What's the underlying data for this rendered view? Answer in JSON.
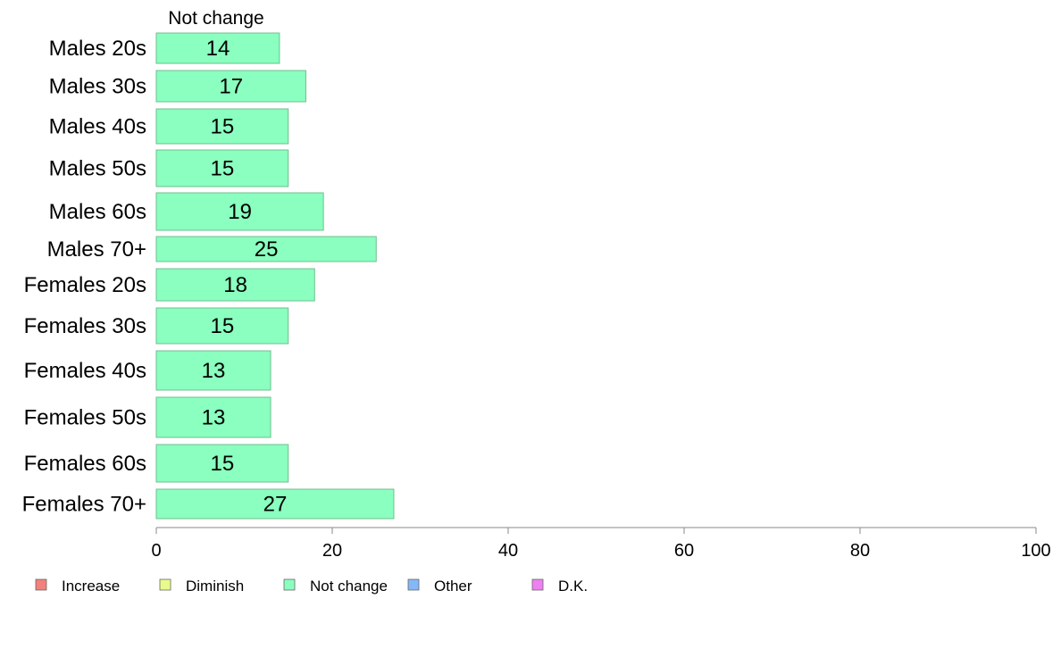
{
  "chart_data": {
    "type": "bar",
    "orientation": "horizontal",
    "series_title": "Not change",
    "categories": [
      "Males 20s",
      "Males 30s",
      "Males 40s",
      "Males 50s",
      "Males 60s",
      "Males 70+",
      "Females 20s",
      "Females 30s",
      "Females 40s",
      "Females 50s",
      "Females 60s",
      "Females 70+"
    ],
    "series": [
      {
        "name": "Not change",
        "values": [
          14,
          17,
          15,
          15,
          19,
          25,
          18,
          15,
          13,
          13,
          15,
          27
        ]
      }
    ],
    "xlim": [
      0,
      100
    ],
    "xticks": [
      0,
      20,
      40,
      60,
      80,
      100
    ],
    "grid": false,
    "legend_position": "bottom",
    "legend": [
      {
        "label": "Increase",
        "color": "#f4807b"
      },
      {
        "label": "Diminish",
        "color": "#e7fb8a"
      },
      {
        "label": "Not change",
        "color": "#8affbf"
      },
      {
        "label": "Other",
        "color": "#85b8f7"
      },
      {
        "label": "D.K.",
        "color": "#ee80f2"
      }
    ],
    "colors": {
      "bar": "#8affbf",
      "bar_stroke": "#6fbf8f",
      "axis": "#888888"
    }
  }
}
